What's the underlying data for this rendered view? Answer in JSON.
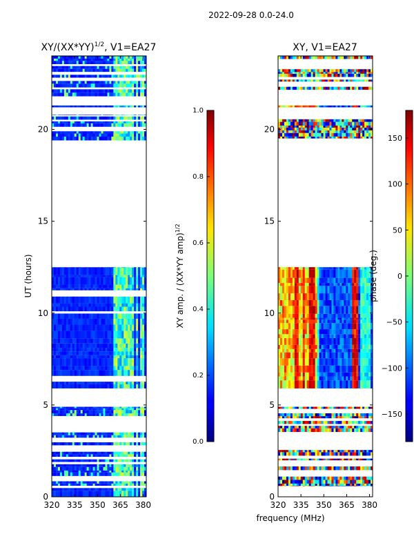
{
  "suptitle": "2022-09-28 0.0-24.0",
  "shared_xlabel": "frequency (MHz)",
  "chart_data": [
    {
      "type": "heatmap",
      "title_prefix": "XY/(XX*YY)",
      "title_exponent": "1/2",
      "title_suffix": ", V1=EA27",
      "ylabel": "UT (hours)",
      "xlim": [
        320,
        382
      ],
      "ylim": [
        0,
        24
      ],
      "xticks": [
        320,
        335,
        350,
        365,
        380
      ],
      "yticks": [
        0,
        5,
        10,
        15,
        20
      ],
      "colorbar": {
        "label_prefix": "XY amp. / (XX*YY amp)",
        "label_exponent": "1/2",
        "range": [
          0.0,
          1.0
        ],
        "ticks": [
          "0.0",
          "0.2",
          "0.4",
          "0.6",
          "0.8",
          "1.0"
        ]
      },
      "data_blocks_hours": [
        [
          0.0,
          0.6
        ],
        [
          0.6,
          4.9
        ],
        [
          5.9,
          12.5
        ],
        [
          19.4,
          20.8
        ],
        [
          21.2,
          21.3
        ],
        [
          21.8,
          24.0
        ]
      ],
      "striped_blocks_hours": [
        [
          0.6,
          4.9
        ],
        [
          19.4,
          20.8
        ],
        [
          21.8,
          24.0
        ]
      ],
      "bright_frequencies_mhz": [
        [
          361,
          364
        ],
        [
          364,
          372
        ],
        [
          372,
          374
        ],
        [
          375,
          377
        ],
        [
          378,
          380
        ]
      ]
    },
    {
      "type": "heatmap",
      "title": "XY, V1=EA27",
      "xlim": [
        320,
        382
      ],
      "ylim": [
        0,
        24
      ],
      "xticks": [
        320,
        335,
        350,
        365,
        380
      ],
      "yticks": [
        0,
        5,
        10,
        15,
        20
      ],
      "colorbar": {
        "label": "phase (deg.)",
        "range": [
          -180,
          180
        ],
        "ticks": [
          "−150",
          "−100",
          "−50",
          "0",
          "50",
          "100",
          "150"
        ],
        "tick_values": [
          -150,
          -100,
          -50,
          0,
          50,
          100,
          150
        ]
      },
      "data_blocks_hours": [
        [
          0.0,
          0.6
        ],
        [
          0.6,
          4.9
        ],
        [
          5.9,
          12.5
        ],
        [
          19.4,
          20.8
        ],
        [
          21.2,
          21.3
        ],
        [
          21.8,
          24.0
        ]
      ],
      "striped_blocks_hours": [
        [
          0.6,
          4.9
        ],
        [
          19.4,
          20.8
        ],
        [
          21.8,
          24.0
        ]
      ],
      "red_frequencies_mhz": [
        [
          331,
          334
        ],
        [
          336,
          338
        ],
        [
          340,
          344
        ],
        [
          369,
          373
        ]
      ],
      "cyan_frequencies_mhz": [
        [
          345,
          347
        ],
        [
          374,
          380
        ]
      ]
    }
  ]
}
